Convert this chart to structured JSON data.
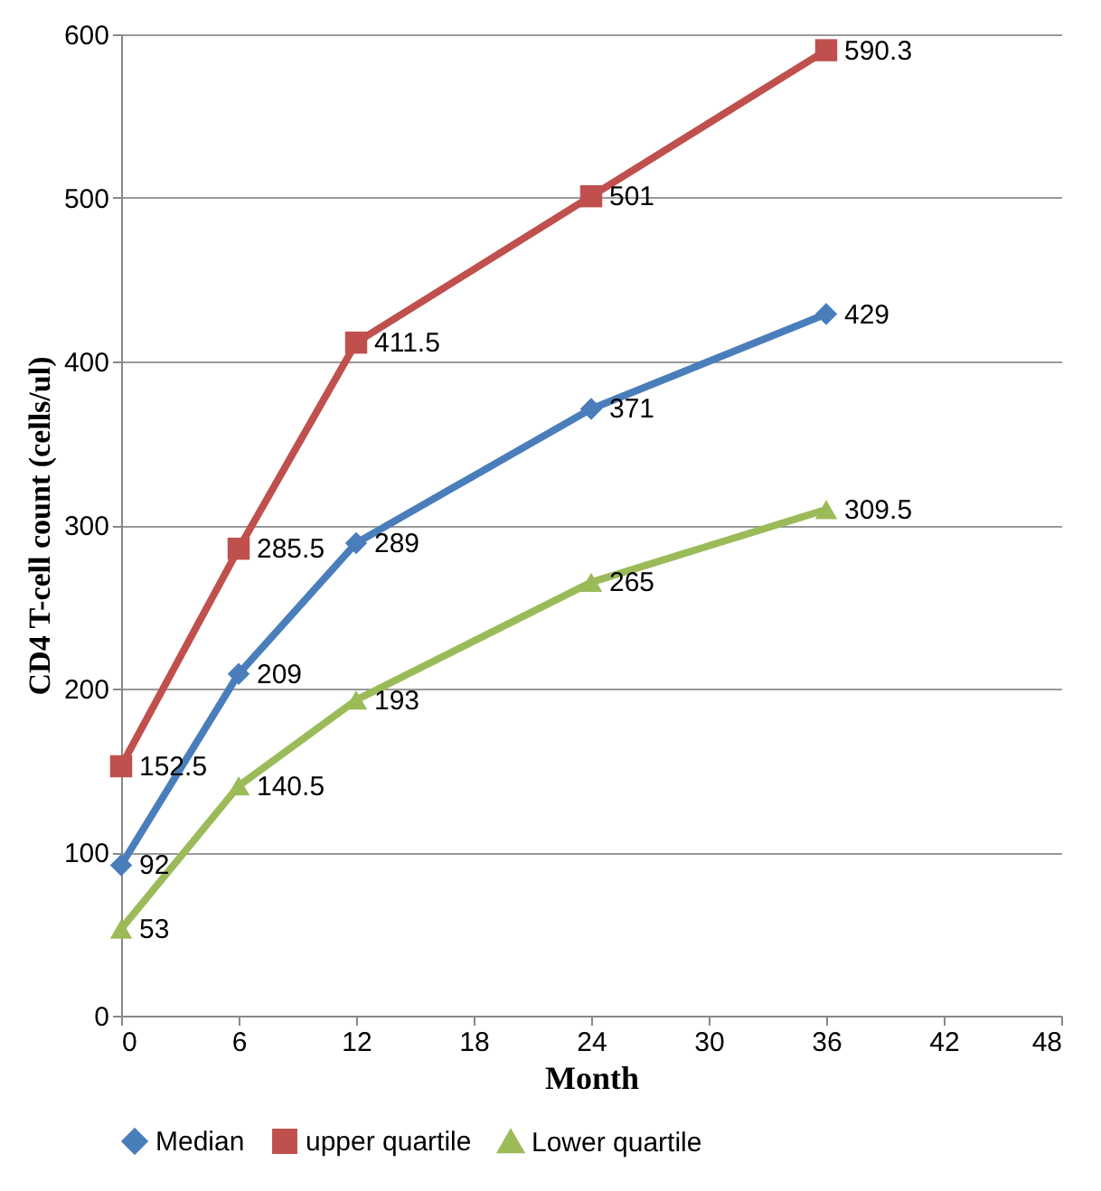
{
  "chart_data": {
    "type": "line",
    "xlabel": "Month",
    "ylabel": "CD4 T-cell count (cells/ul)",
    "x": [
      0,
      6,
      12,
      24,
      36
    ],
    "series": [
      {
        "name": "Median",
        "color": "#4a7ebb",
        "marker": "diamond",
        "values": [
          92,
          209,
          289,
          371,
          429
        ]
      },
      {
        "name": "upper quartile",
        "color": "#c0504d",
        "marker": "square",
        "values": [
          152.5,
          285.5,
          411.5,
          501,
          590.3
        ]
      },
      {
        "name": "Lower quartile",
        "color": "#9bbb59",
        "marker": "triangle",
        "values": [
          53,
          140.5,
          193,
          265,
          309.5
        ]
      }
    ],
    "xlim": [
      0,
      48
    ],
    "xticks": [
      0,
      6,
      12,
      18,
      24,
      30,
      36,
      42,
      48
    ],
    "ylim": [
      0,
      600
    ],
    "yticks": [
      0,
      100,
      200,
      300,
      400,
      500,
      600
    ],
    "grid": "y",
    "legend": "bottom",
    "data_labels": true,
    "line_style": "solid"
  }
}
